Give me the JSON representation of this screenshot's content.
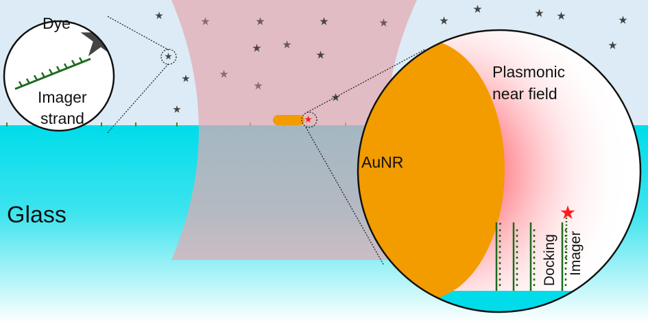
{
  "colors": {
    "solution": "#dcebf5",
    "glass": "#00dcea",
    "beam": "#e3a9b2",
    "aunr": "#f29c00",
    "nearfield": "#ff4d5a",
    "dye": "#444444",
    "strand": "#1f7a1f",
    "active_dye": "#ff1a1a"
  },
  "labels": {
    "dye": "Dye",
    "imager_strand_line1": "Imager",
    "imager_strand_line2": "strand",
    "glass": "Glass",
    "aunr": "AuNR",
    "plasmonic_line1": "Plasmonic",
    "plasmonic_line2": "near field",
    "docking": "Docking",
    "imager": "Imager"
  }
}
